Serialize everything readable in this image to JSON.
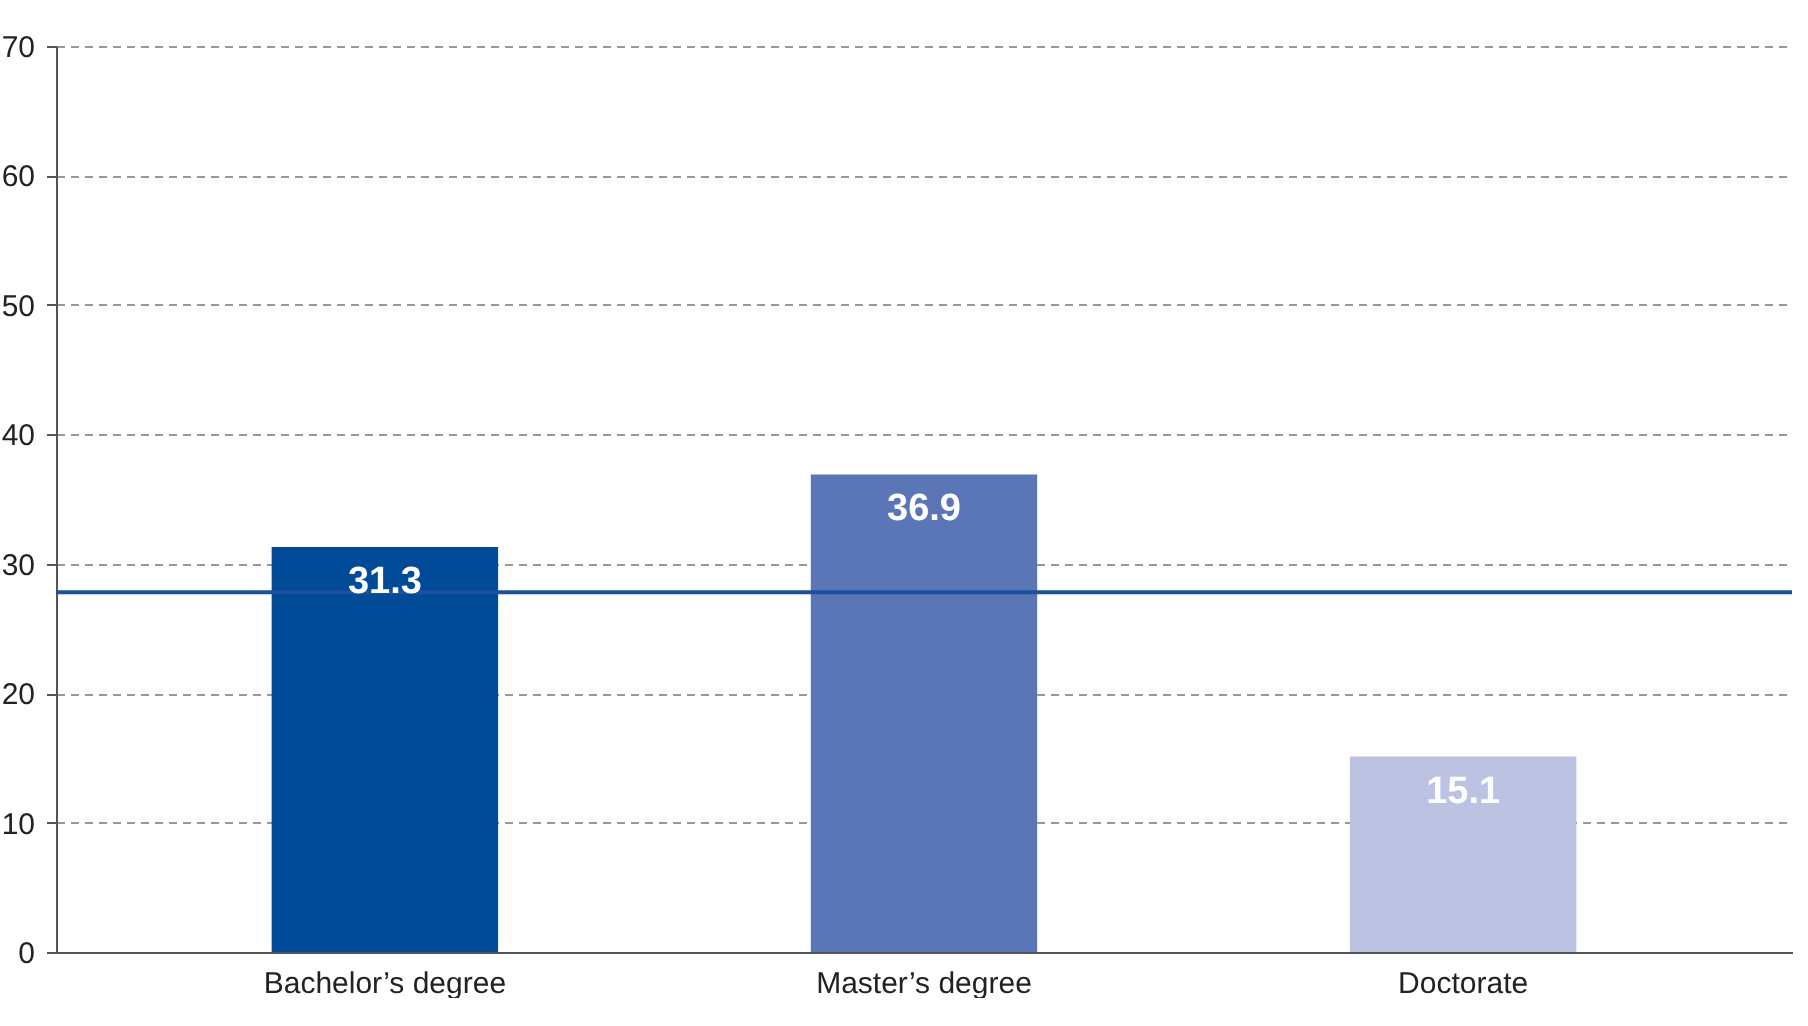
{
  "chart_data": {
    "type": "bar",
    "categories": [
      "Bachelor’s degree",
      "Master’s degree",
      "Doctorate"
    ],
    "values": [
      31.3,
      36.9,
      15.1
    ],
    "colors": [
      "#004a98",
      "#5a76b6",
      "#bcc2e2"
    ],
    "ylim": [
      0,
      70
    ],
    "yticks": [
      0,
      10,
      20,
      30,
      40,
      50,
      60,
      70
    ],
    "grid": "y",
    "data_labels": true,
    "ref_lines": [
      {
        "axis": "y",
        "value": 27.8,
        "color": "#1f4f9c"
      }
    ]
  }
}
